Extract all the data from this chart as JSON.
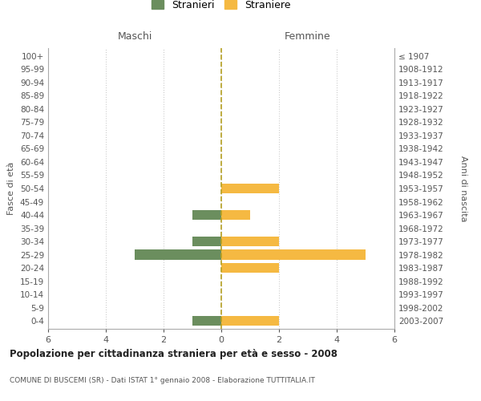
{
  "age_groups": [
    "0-4",
    "5-9",
    "10-14",
    "15-19",
    "20-24",
    "25-29",
    "30-34",
    "35-39",
    "40-44",
    "45-49",
    "50-54",
    "55-59",
    "60-64",
    "65-69",
    "70-74",
    "75-79",
    "80-84",
    "85-89",
    "90-94",
    "95-99",
    "100+"
  ],
  "birth_years": [
    "2003-2007",
    "1998-2002",
    "1993-1997",
    "1988-1992",
    "1983-1987",
    "1978-1982",
    "1973-1977",
    "1968-1972",
    "1963-1967",
    "1958-1962",
    "1953-1957",
    "1948-1952",
    "1943-1947",
    "1938-1942",
    "1933-1937",
    "1928-1932",
    "1923-1927",
    "1918-1922",
    "1913-1917",
    "1908-1912",
    "≤ 1907"
  ],
  "stranieri": [
    -1,
    0,
    0,
    0,
    0,
    -3,
    -1,
    0,
    -1,
    0,
    0,
    0,
    0,
    0,
    0,
    0,
    0,
    0,
    0,
    0,
    0
  ],
  "straniere": [
    2,
    0,
    0,
    0,
    2,
    5,
    2,
    0,
    1,
    0,
    2,
    0,
    0,
    0,
    0,
    0,
    0,
    0,
    0,
    0,
    0
  ],
  "color_stranieri": "#6b8e5e",
  "color_straniere": "#f5b942",
  "color_dashed_line": "#b5a020",
  "xlim": [
    -6,
    6
  ],
  "xticks": [
    -6,
    -4,
    -2,
    0,
    2,
    4,
    6
  ],
  "xticklabels": [
    "6",
    "4",
    "2",
    "0",
    "2",
    "4",
    "6"
  ],
  "title": "Popolazione per cittadinanza straniera per età e sesso - 2008",
  "subtitle": "COMUNE DI BUSCEMI (SR) - Dati ISTAT 1° gennaio 2008 - Elaborazione TUTTITALIA.IT",
  "ylabel_left": "Fasce di età",
  "ylabel_right": "Anni di nascita",
  "label_maschi": "Maschi",
  "label_femmine": "Femmine",
  "legend_stranieri": "Stranieri",
  "legend_straniere": "Straniere",
  "bar_height": 0.75,
  "background_color": "#ffffff",
  "grid_color": "#cccccc"
}
